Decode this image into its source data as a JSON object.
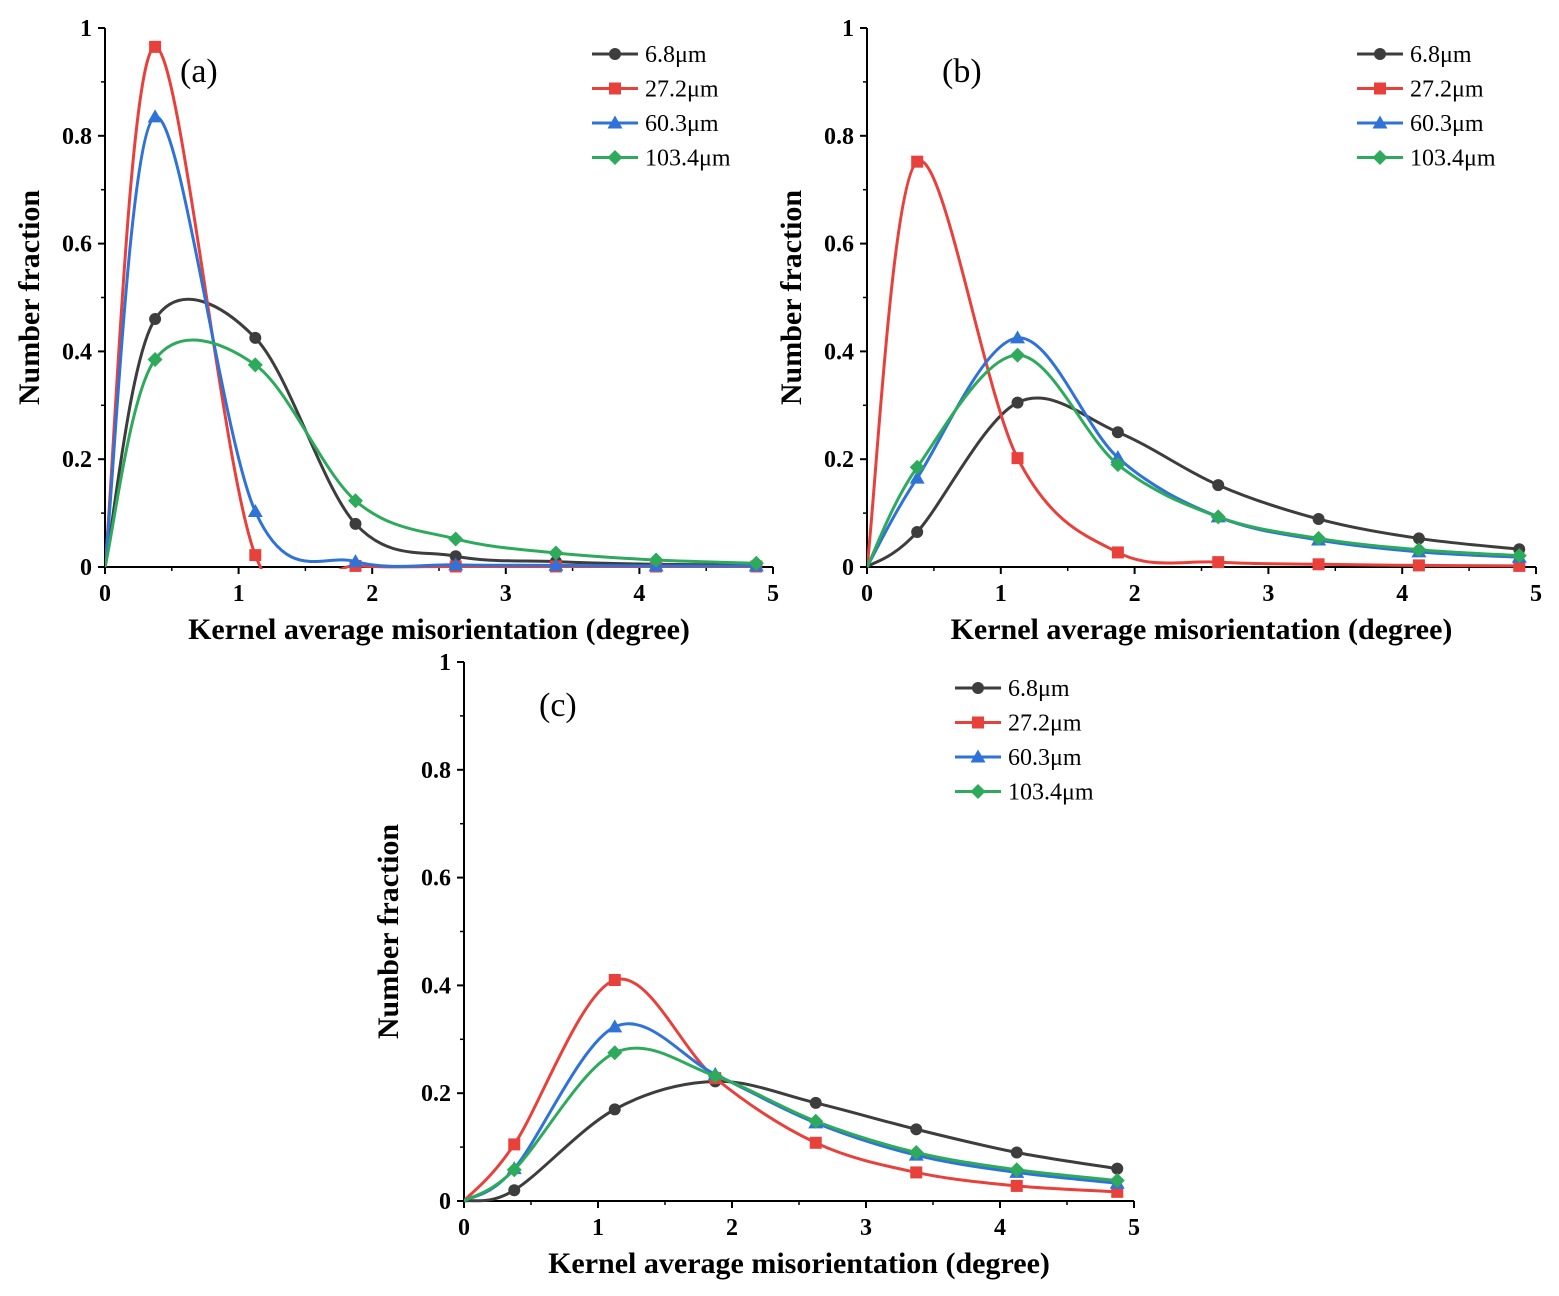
{
  "chart_data": [
    {
      "type": "line",
      "panel_label": "(a)",
      "xlabel": "Kernel average misorientation (degree)",
      "ylabel": "Number fraction",
      "xlim": [
        0,
        5
      ],
      "ylim": [
        0,
        1
      ],
      "xticks": [
        "0",
        "1",
        "2",
        "3",
        "4",
        "5"
      ],
      "yticks": [
        "0",
        "0.2",
        "0.4",
        "0.6",
        "0.8",
        "1"
      ],
      "legend_position": "top-right",
      "series": [
        {
          "name": "6.8μm",
          "color": "#3d3d3d",
          "marker": "circle",
          "x": [
            0,
            0.375,
            1.125,
            1.875,
            2.625,
            3.375,
            4.125,
            4.875
          ],
          "values": [
            0,
            0.46,
            0.425,
            0.08,
            0.02,
            0.01,
            0.005,
            0.004
          ]
        },
        {
          "name": "27.2μm",
          "color": "#e8413c",
          "marker": "square",
          "x": [
            0,
            0.375,
            1.125,
            1.875,
            2.625,
            3.375,
            4.125,
            4.875
          ],
          "values": [
            0,
            0.965,
            0.022,
            0.002,
            0.001,
            0.001,
            0.001,
            0.001
          ]
        },
        {
          "name": "60.3μm",
          "color": "#2f72d8",
          "marker": "triangle",
          "x": [
            0,
            0.375,
            1.125,
            1.875,
            2.625,
            3.375,
            4.125,
            4.875
          ],
          "values": [
            0,
            0.835,
            0.103,
            0.01,
            0.004,
            0.003,
            0.002,
            0.002
          ]
        },
        {
          "name": "103.4μm",
          "color": "#2eaa5c",
          "marker": "diamond",
          "x": [
            0,
            0.375,
            1.125,
            1.875,
            2.625,
            3.375,
            4.125,
            4.875
          ],
          "values": [
            0,
            0.385,
            0.375,
            0.123,
            0.052,
            0.026,
            0.013,
            0.007
          ]
        }
      ]
    },
    {
      "type": "line",
      "panel_label": "(b)",
      "xlabel": "Kernel average misorientation (degree)",
      "ylabel": "Number fraction",
      "xlim": [
        0,
        5
      ],
      "ylim": [
        0,
        1
      ],
      "xticks": [
        "0",
        "1",
        "2",
        "3",
        "4",
        "5"
      ],
      "yticks": [
        "0",
        "0.2",
        "0.4",
        "0.6",
        "0.8",
        "1"
      ],
      "legend_position": "top-right",
      "series": [
        {
          "name": "6.8μm",
          "color": "#3d3d3d",
          "marker": "circle",
          "x": [
            0,
            0.375,
            1.125,
            1.875,
            2.625,
            3.375,
            4.125,
            4.875
          ],
          "values": [
            0,
            0.065,
            0.305,
            0.25,
            0.152,
            0.089,
            0.053,
            0.033
          ]
        },
        {
          "name": "27.2μm",
          "color": "#e8413c",
          "marker": "square",
          "x": [
            0,
            0.375,
            1.125,
            1.875,
            2.625,
            3.375,
            4.125,
            4.875
          ],
          "values": [
            0,
            0.752,
            0.202,
            0.027,
            0.009,
            0.005,
            0.003,
            0.002
          ]
        },
        {
          "name": "60.3μm",
          "color": "#2f72d8",
          "marker": "triangle",
          "x": [
            0,
            0.375,
            1.125,
            1.875,
            2.625,
            3.375,
            4.125,
            4.875
          ],
          "values": [
            0,
            0.165,
            0.425,
            0.203,
            0.093,
            0.05,
            0.028,
            0.018
          ]
        },
        {
          "name": "103.4μm",
          "color": "#2eaa5c",
          "marker": "diamond",
          "x": [
            0,
            0.375,
            1.125,
            1.875,
            2.625,
            3.375,
            4.125,
            4.875
          ],
          "values": [
            0,
            0.185,
            0.393,
            0.19,
            0.093,
            0.053,
            0.032,
            0.021
          ]
        }
      ]
    },
    {
      "type": "line",
      "panel_label": "(c)",
      "xlabel": "Kernel average misorientation (degree)",
      "ylabel": "Number fraction",
      "xlim": [
        0,
        5
      ],
      "ylim": [
        0,
        1
      ],
      "xticks": [
        "0",
        "1",
        "2",
        "3",
        "4",
        "5"
      ],
      "yticks": [
        "0",
        "0.2",
        "0.4",
        "0.6",
        "0.8",
        "1"
      ],
      "legend_position": "top-right",
      "series": [
        {
          "name": "6.8μm",
          "color": "#3d3d3d",
          "marker": "circle",
          "x": [
            0,
            0.375,
            1.125,
            1.875,
            2.625,
            3.375,
            4.125,
            4.875
          ],
          "values": [
            0,
            0.02,
            0.17,
            0.222,
            0.182,
            0.133,
            0.09,
            0.06
          ]
        },
        {
          "name": "27.2μm",
          "color": "#e8413c",
          "marker": "square",
          "x": [
            0,
            0.375,
            1.125,
            1.875,
            2.625,
            3.375,
            4.125,
            4.875
          ],
          "values": [
            0,
            0.105,
            0.41,
            0.228,
            0.108,
            0.053,
            0.028,
            0.017
          ]
        },
        {
          "name": "60.3μm",
          "color": "#2f72d8",
          "marker": "triangle",
          "x": [
            0,
            0.375,
            1.125,
            1.875,
            2.625,
            3.375,
            4.125,
            4.875
          ],
          "values": [
            0,
            0.06,
            0.323,
            0.235,
            0.145,
            0.085,
            0.053,
            0.033
          ]
        },
        {
          "name": "103.4μm",
          "color": "#2eaa5c",
          "marker": "diamond",
          "x": [
            0,
            0.375,
            1.125,
            1.875,
            2.625,
            3.375,
            4.125,
            4.875
          ],
          "values": [
            0,
            0.058,
            0.275,
            0.232,
            0.148,
            0.09,
            0.058,
            0.038
          ]
        }
      ]
    }
  ]
}
